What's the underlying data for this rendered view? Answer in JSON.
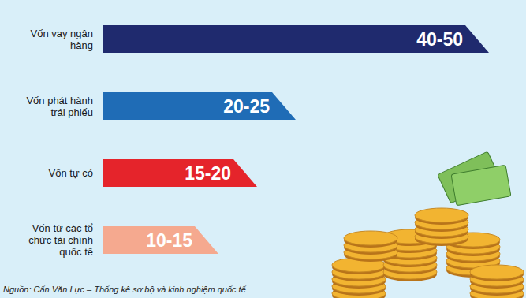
{
  "chart_data": {
    "type": "bar",
    "orientation": "horizontal",
    "categories": [
      "Vốn vay ngân hàng",
      "Vốn phát hành trái phiếu",
      "Vốn tự có",
      "Vốn từ các tổ chức tài chính quốc tế"
    ],
    "values": [
      [
        40,
        50
      ],
      [
        20,
        25
      ],
      [
        15,
        20
      ],
      [
        10,
        15
      ]
    ],
    "value_labels": [
      "40-50",
      "20-25",
      "15-20",
      "10-15"
    ],
    "colors": [
      "#1f2a6e",
      "#1f6cb6",
      "#e5242b",
      "#f5a98f"
    ],
    "xlim": [
      0,
      50
    ],
    "tick_labels": false,
    "grid": false,
    "data_labels": true,
    "source": "Nguồn: Cấn Văn Lực – Thống kê sơ bộ và kinh nghiệm quốc tế"
  }
}
